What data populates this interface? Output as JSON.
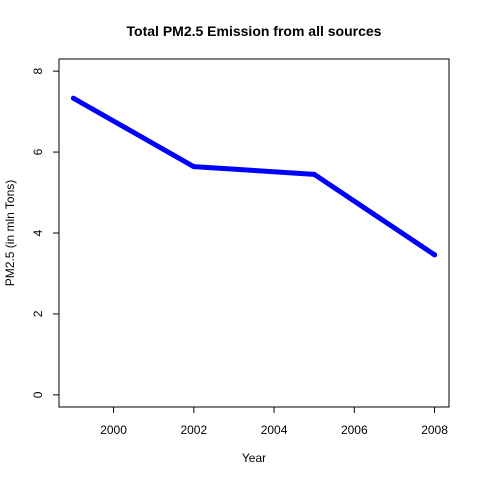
{
  "chart_data": {
    "type": "line",
    "title": "Total PM2.5 Emission from all sources",
    "xlabel": "Year",
    "ylabel": "PM2.5 (in mln Tons)",
    "x": [
      1999,
      2002,
      2005,
      2008
    ],
    "series": [
      {
        "values": [
          7.33,
          5.64,
          5.45,
          3.46
        ],
        "color": "#0000ff"
      }
    ],
    "xlim": [
      1998.64,
      2008.36
    ],
    "ylim": [
      -0.3,
      8.3
    ],
    "xticks": [
      2000,
      2002,
      2004,
      2006,
      2008
    ],
    "yticks": [
      0,
      2,
      4,
      6,
      8
    ],
    "xtick_labels": [
      "2000",
      "2002",
      "2004",
      "2006",
      "2008"
    ],
    "ytick_labels": [
      "0",
      "2",
      "4",
      "6",
      "8"
    ],
    "grid": false,
    "legend": "none"
  }
}
